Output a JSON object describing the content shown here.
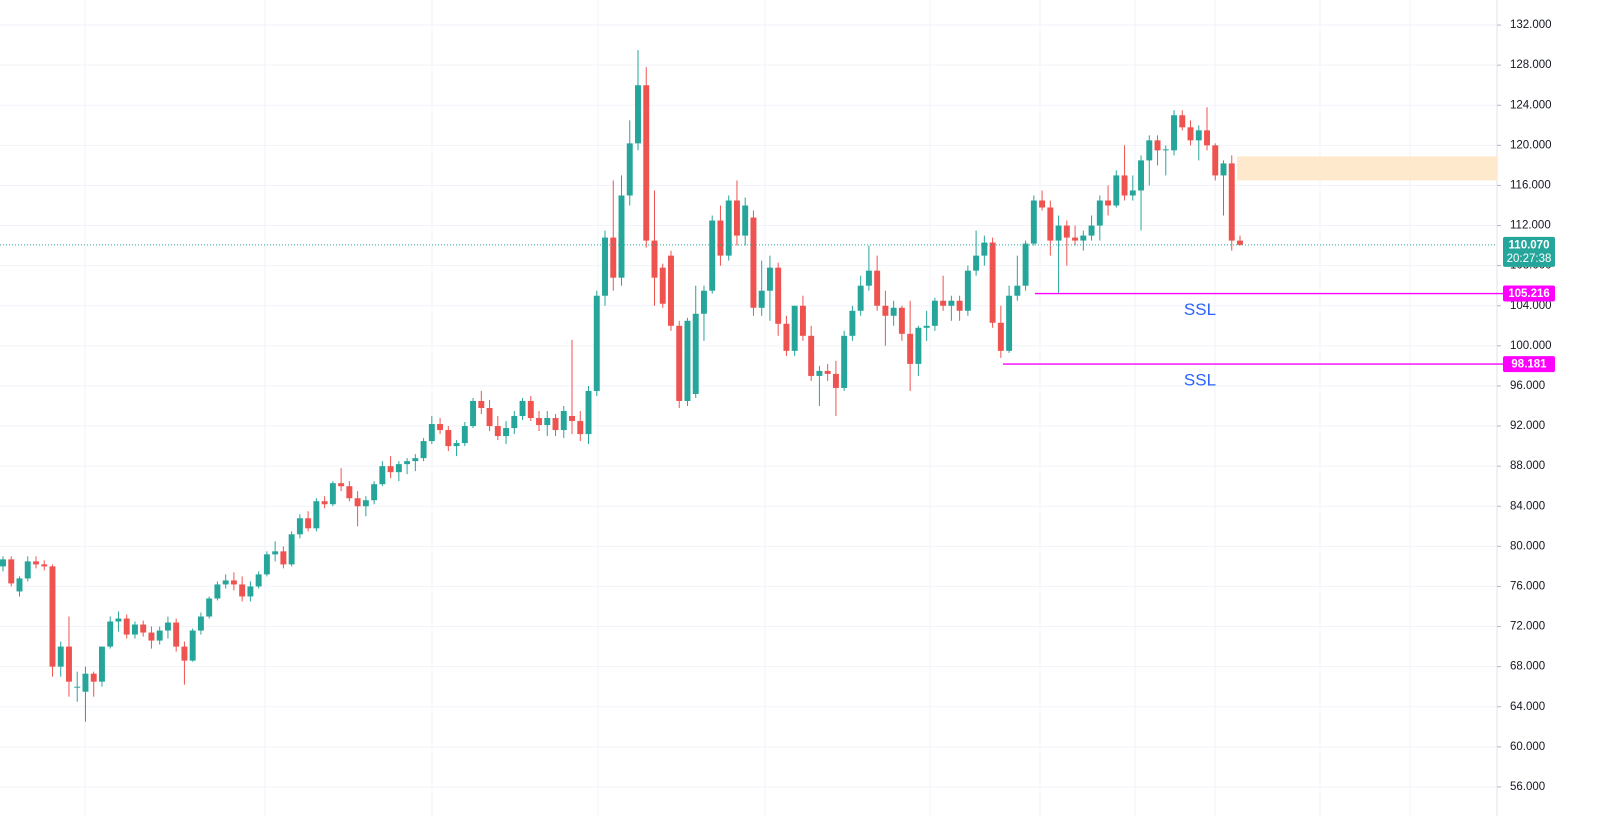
{
  "chart_data": {
    "type": "candlestick",
    "up_color": "#26a69a",
    "down_color": "#ef5350",
    "ylim": [
      53.1,
      134.5
    ],
    "yticks": [
      {
        "value": 56,
        "label": "56.000"
      },
      {
        "value": 60,
        "label": "60.000"
      },
      {
        "value": 64,
        "label": "64.000"
      },
      {
        "value": 68,
        "label": "68.000"
      },
      {
        "value": 72,
        "label": "72.000"
      },
      {
        "value": 76,
        "label": "76.000"
      },
      {
        "value": 80,
        "label": "80.000"
      },
      {
        "value": 84,
        "label": "84.000"
      },
      {
        "value": 88,
        "label": "88.000"
      },
      {
        "value": 92,
        "label": "92.000"
      },
      {
        "value": 96,
        "label": "96.000"
      },
      {
        "value": 100,
        "label": "100.000"
      },
      {
        "value": 104,
        "label": "104.000"
      },
      {
        "value": 108,
        "label": "108.000"
      },
      {
        "value": 112,
        "label": "112.000"
      },
      {
        "value": 116,
        "label": "116.000"
      },
      {
        "value": 120,
        "label": "120.000"
      },
      {
        "value": 124,
        "label": "124.000"
      },
      {
        "value": 128,
        "label": "128.000"
      },
      {
        "value": 132,
        "label": "132.000"
      }
    ],
    "grid": true,
    "candles": [
      [
        78,
        79,
        77.5,
        78.7
      ],
      [
        78.7,
        79,
        76,
        76.3
      ],
      [
        75.5,
        77,
        75,
        76.8
      ],
      [
        76.8,
        79,
        76.5,
        78.5
      ],
      [
        78.5,
        79,
        77.8,
        78.2
      ],
      [
        78.2,
        78.6,
        77.6,
        78
      ],
      [
        78,
        78.2,
        67,
        68
      ],
      [
        68,
        70.5,
        67,
        70
      ],
      [
        70,
        73,
        65,
        66.5
      ],
      [
        66,
        67.5,
        64.5,
        66
      ],
      [
        65.5,
        68,
        62.5,
        67.3
      ],
      [
        67.3,
        67.5,
        65,
        66.5
      ],
      [
        66.5,
        70,
        66,
        70
      ],
      [
        70,
        73,
        69.8,
        72.5
      ],
      [
        72.5,
        73.5,
        71.5,
        72.8
      ],
      [
        72.8,
        73.2,
        70.8,
        71.2
      ],
      [
        71.2,
        72.5,
        70.8,
        72.2
      ],
      [
        72.2,
        72.6,
        71,
        71.4
      ],
      [
        71.4,
        72,
        69.8,
        70.6
      ],
      [
        70.6,
        72,
        70.2,
        71.6
      ],
      [
        71.6,
        73,
        70.8,
        72.4
      ],
      [
        72.4,
        72.8,
        69.5,
        70
      ],
      [
        70,
        70.5,
        66.2,
        68.6
      ],
      [
        68.6,
        71.8,
        68.5,
        71.6
      ],
      [
        71.6,
        73.4,
        71.2,
        73
      ],
      [
        73,
        75,
        72.8,
        74.8
      ],
      [
        74.8,
        76.5,
        74.6,
        76.2
      ],
      [
        76.2,
        77.2,
        75.8,
        76.6
      ],
      [
        76.6,
        77.4,
        75.6,
        76.2
      ],
      [
        76.2,
        77,
        74.5,
        75
      ],
      [
        75,
        76.5,
        74.5,
        76
      ],
      [
        76,
        77.5,
        75.8,
        77.2
      ],
      [
        77.2,
        79.5,
        77,
        79.2
      ],
      [
        79.2,
        80.5,
        78.5,
        79.5
      ],
      [
        79.5,
        80,
        77.8,
        78.2
      ],
      [
        78.2,
        81.5,
        78,
        81.2
      ],
      [
        81.2,
        83.2,
        80.8,
        82.8
      ],
      [
        82.8,
        83.5,
        81.5,
        81.8
      ],
      [
        81.8,
        84.8,
        81.5,
        84.5
      ],
      [
        84.5,
        85,
        83.8,
        84.2
      ],
      [
        84.2,
        86.5,
        84,
        86.3
      ],
      [
        86.3,
        87.8,
        85.5,
        86
      ],
      [
        86,
        86.5,
        84.5,
        84.8
      ],
      [
        84.8,
        85.5,
        82,
        84
      ],
      [
        84,
        85,
        83,
        84.6
      ],
      [
        84.6,
        86.5,
        84.2,
        86.2
      ],
      [
        86.2,
        88.5,
        86,
        88
      ],
      [
        88,
        89,
        86.8,
        87.4
      ],
      [
        87.4,
        88.5,
        86.5,
        88.2
      ],
      [
        88.2,
        88.8,
        87.2,
        88.5
      ],
      [
        88.5,
        89.2,
        87.5,
        88.8
      ],
      [
        88.8,
        90.8,
        88.5,
        90.5
      ],
      [
        90.5,
        93,
        90.2,
        92.2
      ],
      [
        92.2,
        92.8,
        91.2,
        91.6
      ],
      [
        91.6,
        92,
        89.5,
        90
      ],
      [
        90,
        90.6,
        89,
        90.3
      ],
      [
        90.3,
        92.4,
        90,
        92
      ],
      [
        92,
        94.8,
        91.8,
        94.5
      ],
      [
        94.5,
        95.5,
        93.2,
        93.8
      ],
      [
        93.8,
        94.6,
        91.5,
        92
      ],
      [
        92,
        93,
        90.6,
        91
      ],
      [
        91,
        92.5,
        90.2,
        91.8
      ],
      [
        91.8,
        93.5,
        91.2,
        93
      ],
      [
        93,
        94.8,
        92.6,
        94.5
      ],
      [
        94.5,
        95,
        92.5,
        92.8
      ],
      [
        92.8,
        93.5,
        91.5,
        92.1
      ],
      [
        92.1,
        93.5,
        91,
        92.8
      ],
      [
        92.8,
        93.2,
        91,
        91.6
      ],
      [
        91.6,
        94,
        90.8,
        93.5
      ],
      [
        93,
        100.6,
        91.2,
        92.5
      ],
      [
        92.5,
        93.5,
        90.5,
        91.2
      ],
      [
        91.2,
        96,
        90.2,
        95.5
      ],
      [
        95.5,
        105.5,
        95,
        105
      ],
      [
        105,
        111.5,
        104,
        110.8
      ],
      [
        110.8,
        116.5,
        105.5,
        106.8
      ],
      [
        106.8,
        117,
        106,
        115
      ],
      [
        115,
        122.5,
        114,
        120.2
      ],
      [
        120.2,
        129.5,
        119.5,
        126
      ],
      [
        126,
        127.8,
        109.8,
        110.5
      ],
      [
        110.5,
        115.5,
        104,
        106.8
      ],
      [
        107.8,
        108.2,
        103.8,
        104.2
      ],
      [
        109,
        109.5,
        101.5,
        102
      ],
      [
        102,
        102.5,
        93.8,
        94.5
      ],
      [
        94.5,
        102.8,
        94,
        102.5
      ],
      [
        95.2,
        106,
        94.8,
        103.2
      ],
      [
        103.2,
        106,
        100.5,
        105.5
      ],
      [
        105.5,
        113,
        105.2,
        112.5
      ],
      [
        112.5,
        114,
        108,
        109
      ],
      [
        109,
        115,
        108.5,
        114.5
      ],
      [
        114.5,
        116.5,
        110,
        111
      ],
      [
        111,
        114.8,
        110,
        114
      ],
      [
        112.8,
        113.5,
        103,
        103.8
      ],
      [
        103.8,
        108.5,
        103,
        105.5
      ],
      [
        105.5,
        109,
        102.5,
        107.8
      ],
      [
        107.8,
        108.3,
        101,
        102.2
      ],
      [
        102.2,
        103,
        99,
        99.5
      ],
      [
        99.5,
        104,
        99,
        104
      ],
      [
        104,
        105,
        100.5,
        101
      ],
      [
        101,
        102,
        96.5,
        97
      ],
      [
        97,
        98,
        94,
        97.5
      ],
      [
        97.5,
        98.2,
        96.5,
        97.2
      ],
      [
        97.2,
        98.5,
        93,
        95.8
      ],
      [
        95.8,
        101.5,
        95.5,
        101
      ],
      [
        101,
        104,
        100.5,
        103.5
      ],
      [
        103.5,
        107,
        103,
        106
      ],
      [
        106,
        110,
        105.5,
        107.5
      ],
      [
        107.5,
        109,
        103.5,
        104
      ],
      [
        104,
        105.5,
        100,
        103
      ],
      [
        103,
        104.5,
        102,
        103.8
      ],
      [
        103.8,
        104,
        100.5,
        101.2
      ],
      [
        101.2,
        104.5,
        95.5,
        98.2
      ],
      [
        98.2,
        102,
        97,
        101.8
      ],
      [
        101.8,
        103.5,
        100.5,
        102
      ],
      [
        102,
        104.8,
        101.5,
        104.5
      ],
      [
        104.5,
        107,
        103.5,
        104
      ],
      [
        104,
        105,
        102.5,
        104.5
      ],
      [
        104.5,
        105,
        102.5,
        103.5
      ],
      [
        103.5,
        108,
        103,
        107.5
      ],
      [
        107.5,
        111.5,
        107,
        109
      ],
      [
        109,
        111,
        108,
        110.3
      ],
      [
        110.3,
        110.8,
        101.8,
        102.3
      ],
      [
        102.3,
        104,
        98.8,
        99.5
      ],
      [
        99.5,
        106,
        99.3,
        105
      ],
      [
        105,
        109,
        104.5,
        106
      ],
      [
        106,
        110.5,
        105.5,
        110.2
      ],
      [
        110.2,
        115,
        110,
        114.5
      ],
      [
        114.5,
        115.5,
        113.5,
        113.8
      ],
      [
        113.8,
        114.5,
        109,
        110.5
      ],
      [
        110.5,
        113,
        105.3,
        112
      ],
      [
        112,
        112.5,
        108,
        110.8
      ],
      [
        110.8,
        112,
        110,
        110.5
      ],
      [
        110.5,
        111.5,
        109.5,
        111
      ],
      [
        111,
        113,
        110.5,
        112
      ],
      [
        112,
        115,
        110.5,
        114.5
      ],
      [
        114.5,
        116,
        113,
        114
      ],
      [
        114,
        117.5,
        113.8,
        117
      ],
      [
        117,
        120,
        114.5,
        115
      ],
      [
        115,
        117,
        114.5,
        115.5
      ],
      [
        115.5,
        119,
        111.5,
        118.5
      ],
      [
        118.5,
        121,
        116,
        120.5
      ],
      [
        120.5,
        121,
        118,
        119.5
      ],
      [
        119.5,
        120,
        117,
        119.6
      ],
      [
        119.5,
        123.5,
        119,
        123
      ],
      [
        123,
        123.5,
        121.5,
        121.8
      ],
      [
        121.8,
        122.5,
        120,
        120.5
      ],
      [
        120.5,
        122,
        118.5,
        121.5
      ],
      [
        121.5,
        123.8,
        119.5,
        120
      ],
      [
        120,
        120.2,
        116.5,
        117
      ],
      [
        117,
        118.5,
        113,
        118.2
      ],
      [
        118.2,
        119,
        109.5,
        110.5
      ],
      [
        110.5,
        111,
        110,
        110.07
      ]
    ],
    "last_price": {
      "value": 110.07,
      "label": "110.070"
    },
    "countdown": "20:27:38",
    "levels": [
      {
        "price": 105.216,
        "text": "SSL",
        "color": "#ff00ff"
      },
      {
        "price": 98.181,
        "text": "SSL",
        "color": "#ff00ff"
      }
    ],
    "zone": {
      "low": 116.5,
      "high": 118.9,
      "color": "#ffe9cc"
    }
  }
}
